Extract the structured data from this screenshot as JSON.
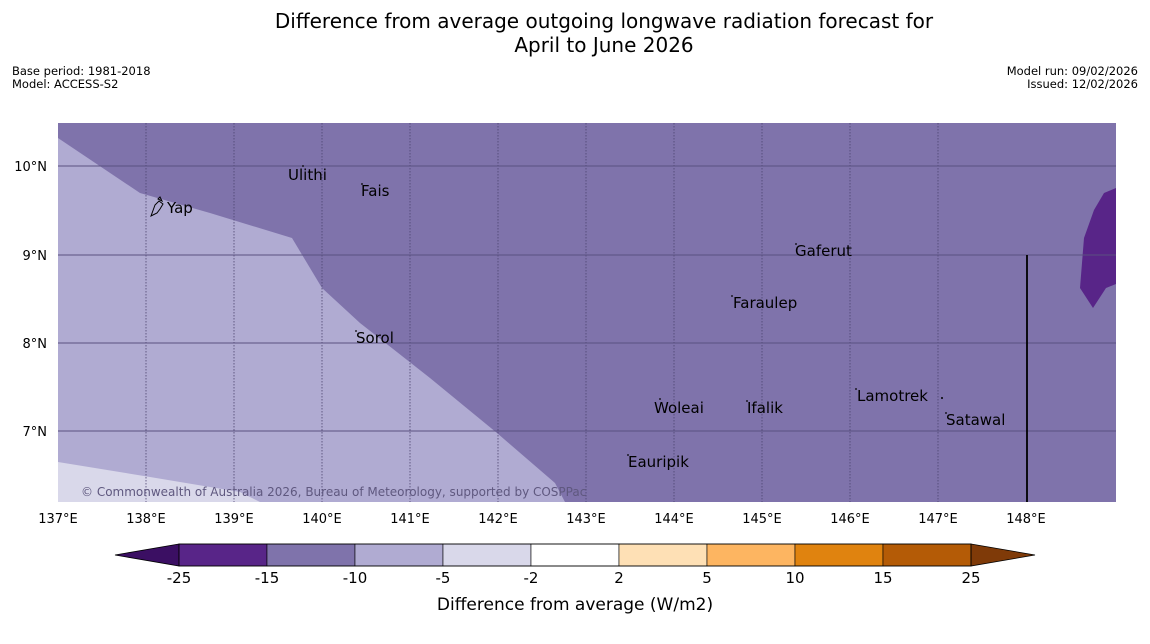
{
  "title": {
    "line1": "Difference from average outgoing longwave radiation forecast for",
    "line2": "April to June 2026"
  },
  "meta": {
    "base_period": "Base period: 1981-2018",
    "model": "Model: ACCESS-S2",
    "model_run": "Model run: 09/02/2026",
    "issued": "Issued: 12/02/2026"
  },
  "map": {
    "lon_labels": [
      "137°E",
      "138°E",
      "139°E",
      "140°E",
      "141°E",
      "142°E",
      "143°E",
      "144°E",
      "145°E",
      "146°E",
      "147°E",
      "148°E"
    ],
    "lat_labels": [
      "10°N",
      "9°N",
      "8°N",
      "7°N"
    ],
    "places": [
      "Ulithi",
      "Fais",
      "Yap",
      "Gaferut",
      "Faraulep",
      "Sorol",
      "Woleai",
      "Ifalik",
      "Lamotrek",
      "Satawal",
      "Eauripik"
    ],
    "copyright": "© Commonwealth of Australia 2026, Bureau of Meteorology, supported by COSPPac"
  },
  "colorbar": {
    "ticks": [
      "-25",
      "-15",
      "-10",
      "-5",
      "-2",
      "2",
      "5",
      "10",
      "15",
      "25"
    ],
    "colors": [
      "#3b0f63",
      "#582588",
      "#7f73ab",
      "#b0abd2",
      "#d9d8ea",
      "#ffffff",
      "#fee0b5",
      "#fdb561",
      "#e0830f",
      "#b45b06",
      "#7f3a08"
    ],
    "label": "Difference from average (W/m2)"
  }
}
